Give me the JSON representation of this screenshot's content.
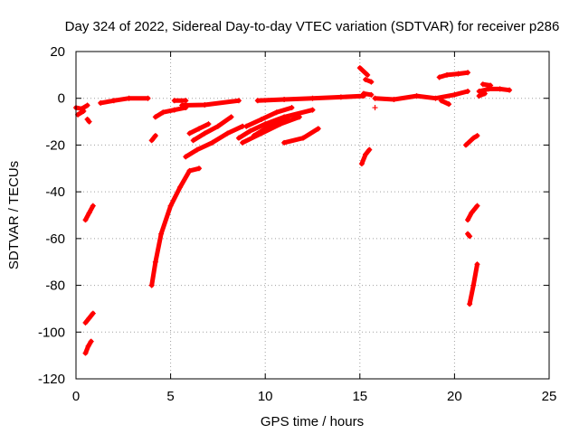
{
  "chart_data": {
    "type": "scatter",
    "title": "Day 324 of 2022, Sidereal Day-to-day VTEC variation (SDTVAR) for receiver p286",
    "xlabel": "GPS time / hours",
    "ylabel": "SDTVAR / TECUs",
    "xlim": [
      0,
      25
    ],
    "ylim": [
      -120,
      20
    ],
    "xticks": [
      0,
      5,
      10,
      15,
      20,
      25
    ],
    "yticks": [
      20,
      0,
      -20,
      -40,
      -60,
      -80,
      -100,
      -120
    ],
    "xtick_labels": [
      "0",
      "5",
      "10",
      "15",
      "20",
      "25"
    ],
    "ytick_labels": [
      "20",
      "0",
      "-20",
      "-40",
      "-60",
      "-80",
      "-100",
      "-120"
    ],
    "grid": true,
    "legend": "none",
    "marker": "plus",
    "series": [
      {
        "name": "SDTVAR",
        "color": "#ff0000",
        "segments": [
          [
            [
              0.0,
              -4
            ],
            [
              0.3,
              -4.5
            ],
            [
              0.6,
              -3
            ]
          ],
          [
            [
              0.1,
              -7
            ],
            [
              0.4,
              -5.5
            ]
          ],
          [
            [
              0.6,
              -9
            ],
            [
              0.7,
              -10
            ]
          ],
          [
            [
              1.3,
              -2
            ],
            [
              2.0,
              -1
            ],
            [
              2.8,
              0
            ],
            [
              3.8,
              0
            ]
          ],
          [
            [
              4.0,
              -18
            ],
            [
              4.2,
              -16
            ]
          ],
          [
            [
              4.0,
              -80
            ],
            [
              4.2,
              -70
            ],
            [
              4.5,
              -58
            ],
            [
              5.0,
              -46
            ],
            [
              5.5,
              -38
            ],
            [
              6.0,
              -31
            ],
            [
              6.5,
              -30
            ]
          ],
          [
            [
              4.2,
              -8
            ],
            [
              4.6,
              -6
            ],
            [
              5.2,
              -5
            ],
            [
              5.8,
              -4
            ]
          ],
          [
            [
              5.2,
              -1
            ],
            [
              5.8,
              -1
            ]
          ],
          [
            [
              5.6,
              -3
            ],
            [
              6.8,
              -2.8
            ],
            [
              8.6,
              -1
            ]
          ],
          [
            [
              5.8,
              -25
            ],
            [
              6.4,
              -22
            ],
            [
              7.2,
              -19
            ],
            [
              8.0,
              -15
            ],
            [
              8.8,
              -12
            ]
          ],
          [
            [
              6.0,
              -15
            ],
            [
              6.5,
              -13
            ],
            [
              7.0,
              -11
            ]
          ],
          [
            [
              6.2,
              -18
            ],
            [
              6.8,
              -15
            ],
            [
              7.5,
              -12
            ],
            [
              8.2,
              -8
            ]
          ],
          [
            [
              8.6,
              -17
            ],
            [
              9.2,
              -14
            ],
            [
              10.0,
              -11
            ],
            [
              11.0,
              -8
            ],
            [
              12.5,
              -5
            ]
          ],
          [
            [
              9.0,
              -12
            ],
            [
              9.8,
              -9
            ],
            [
              10.6,
              -6
            ],
            [
              11.4,
              -4
            ]
          ],
          [
            [
              8.8,
              -19
            ],
            [
              9.8,
              -15
            ],
            [
              10.8,
              -11
            ],
            [
              11.8,
              -8
            ]
          ],
          [
            [
              9.4,
              -16
            ],
            [
              10.2,
              -12
            ],
            [
              11.2,
              -8
            ]
          ],
          [
            [
              9.6,
              -1
            ],
            [
              11.0,
              -0.5
            ],
            [
              12.5,
              0
            ],
            [
              14.0,
              0.5
            ],
            [
              15.2,
              1
            ]
          ],
          [
            [
              11.0,
              -19
            ],
            [
              12.0,
              -17
            ],
            [
              12.8,
              -13
            ]
          ],
          [
            [
              15.0,
              13
            ],
            [
              15.4,
              10
            ]
          ],
          [
            [
              15.3,
              8
            ],
            [
              15.6,
              7
            ]
          ],
          [
            [
              15.2,
              2
            ],
            [
              15.6,
              1.5
            ]
          ],
          [
            [
              15.1,
              -28
            ],
            [
              15.3,
              -24
            ],
            [
              15.5,
              -22
            ]
          ],
          [
            [
              15.8,
              -4
            ]
          ],
          [
            [
              15.8,
              0
            ],
            [
              16.8,
              -0.5
            ],
            [
              18.0,
              1
            ],
            [
              19.0,
              0
            ],
            [
              20.0,
              1.5
            ],
            [
              20.7,
              3
            ]
          ],
          [
            [
              19.3,
              -1
            ],
            [
              19.7,
              -2.5
            ]
          ],
          [
            [
              19.2,
              9
            ],
            [
              19.6,
              10
            ],
            [
              20.2,
              10.5
            ],
            [
              20.7,
              11
            ]
          ],
          [
            [
              20.6,
              -20
            ],
            [
              21.0,
              -17
            ],
            [
              21.2,
              -16
            ]
          ],
          [
            [
              20.7,
              -58
            ],
            [
              20.8,
              -59
            ]
          ],
          [
            [
              20.7,
              -52
            ],
            [
              20.9,
              -49
            ],
            [
              21.2,
              -46
            ]
          ],
          [
            [
              20.8,
              -88
            ],
            [
              21.0,
              -80
            ],
            [
              21.2,
              -71
            ]
          ],
          [
            [
              21.3,
              3
            ],
            [
              21.8,
              4
            ],
            [
              22.4,
              4
            ],
            [
              22.9,
              3.5
            ]
          ],
          [
            [
              21.5,
              6
            ],
            [
              21.9,
              5.5
            ]
          ],
          [
            [
              21.3,
              1
            ],
            [
              21.6,
              2
            ]
          ],
          [
            [
              0.5,
              -52
            ],
            [
              0.7,
              -49
            ],
            [
              0.9,
              -46
            ]
          ],
          [
            [
              0.5,
              -96
            ],
            [
              0.7,
              -94
            ],
            [
              0.9,
              -92
            ]
          ],
          [
            [
              0.5,
              -109
            ],
            [
              0.65,
              -106
            ],
            [
              0.8,
              -104
            ]
          ]
        ]
      }
    ]
  }
}
